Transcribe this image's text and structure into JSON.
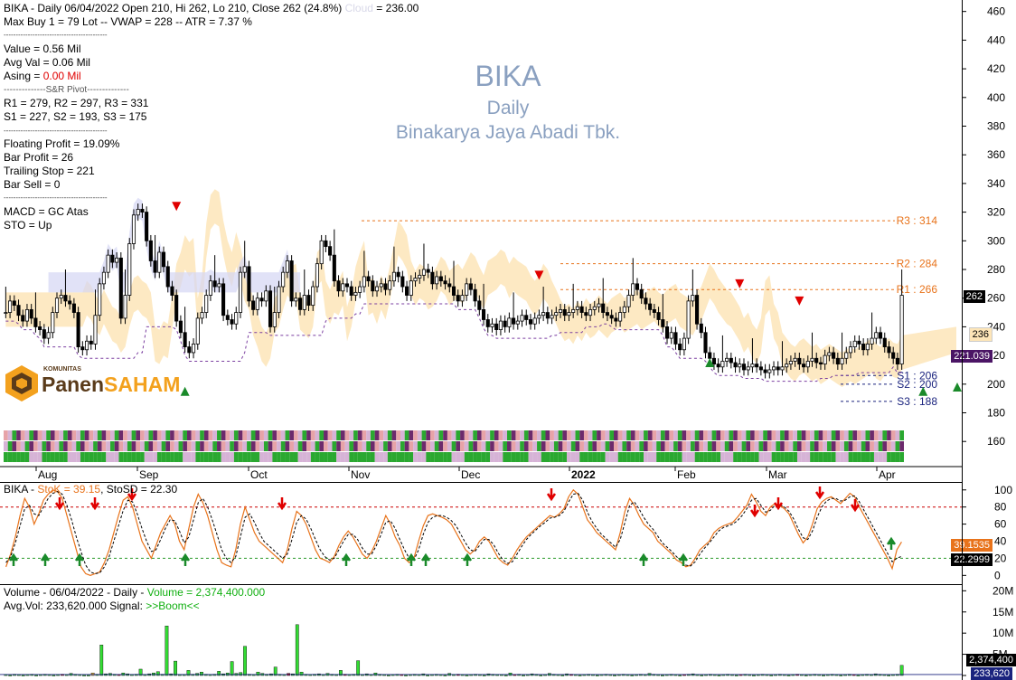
{
  "header": {
    "line1_prefix": "BIKA - Daily 06/04/2022 Open 210, Hi 262, Lo 210, Close 262 (24.8%)",
    "cloud_label": "Cloud",
    "cloud_value": "= 236.00",
    "line2": "Max Buy 1 = 79 Lot  --  VWAP = 228  --  ATR = 7.37 %",
    "divider": "-------------------------------------------",
    "value": "Value = 0.56 Mil",
    "avg_val": "Avg Val = 0.06 Mil",
    "asing_label": "Asing = ",
    "asing_value": "0.00 Mil",
    "pivot_title": "--------------S&R Pivot--------------",
    "r_line": "R1 = 279, R2 = 297, R3 = 331",
    "s_line": "S1 = 227, S2 = 193, S3 = 175",
    "floating": "Floating Profit = 19.09%",
    "bar_profit": "Bar Profit = 26",
    "trailing": "Trailing Stop = 221",
    "bar_sell": "Bar Sell = 0",
    "macd": "MACD =  GC Atas",
    "sto": "STO  =  Up"
  },
  "watermark": {
    "ticker": "BIKA",
    "period": "Daily",
    "company": "Binakarya Jaya Abadi Tbk."
  },
  "logo": {
    "small": "KOMUNITAS",
    "part1": "Panen",
    "part2": "SAHAM"
  },
  "levels": [
    {
      "label": "R3 : 314",
      "value": 314,
      "color": "#e8731b"
    },
    {
      "label": "R2 : 284",
      "value": 284,
      "color": "#e8731b"
    },
    {
      "label": "R1 : 266",
      "value": 266,
      "color": "#e8731b"
    },
    {
      "label": "S1 : 206",
      "value": 206,
      "color": "#1a237e"
    },
    {
      "label": "S2 : 200",
      "value": 200,
      "color": "#1a237e"
    },
    {
      "label": "S3 : 188",
      "value": 188,
      "color": "#1a237e"
    }
  ],
  "price_tags": {
    "last": "262",
    "cloud": "236",
    "trail": "221.039"
  },
  "sto_header": {
    "prefix": "BIKA - ",
    "stok": "StoK = 39.15",
    "stosd": ", StoSD = 22.30"
  },
  "sto_tags": {
    "k": "39.1535",
    "d": "22.2999"
  },
  "vol_header": {
    "prefix": "Volume - 06/04/2022 - Daily - ",
    "vol": "Volume = 2,374,400.000",
    "avg_prefix": "Avg.Vol: 233,620.000   Signal: ",
    "signal": ">>Boom<<"
  },
  "vol_tags": {
    "vol": "2,374,400",
    "avg": "233,620"
  },
  "colors": {
    "bull": "#000000",
    "bear": "#000000",
    "cloud": "#fde5b8",
    "cloud_blue": "#d4d6f4",
    "buy_arrow": "#1a8a2a",
    "sell_arrow": "#e00000",
    "stok": "#e8731b",
    "stosd": "#000000",
    "vol_green": "#33dd33",
    "vol_red": "#cc1111",
    "vol_orange": "#f0c040"
  },
  "chart_data": [
    {
      "type": "candlestick",
      "title": "BIKA",
      "y_ticks": [
        160,
        180,
        200,
        220,
        240,
        260,
        280,
        300,
        320,
        340,
        360,
        380,
        400,
        420,
        440,
        460
      ],
      "ylim": [
        145,
        468
      ],
      "x_ticks": [
        "Aug",
        "Sep",
        "Oct",
        "Nov",
        "Dec",
        "2022",
        "Feb",
        "Mar",
        "Apr"
      ],
      "close": [
        250,
        258,
        255,
        248,
        244,
        252,
        246,
        240,
        238,
        232,
        236,
        250,
        260,
        262,
        258,
        256,
        250,
        226,
        224,
        230,
        228,
        248,
        270,
        278,
        290,
        285,
        288,
        246,
        262,
        298,
        318,
        322,
        320,
        300,
        286,
        278,
        292,
        282,
        268,
        262,
        244,
        236,
        226,
        222,
        228,
        246,
        250,
        262,
        272,
        268,
        270,
        248,
        245,
        242,
        250,
        278,
        282,
        258,
        252,
        260,
        258,
        265,
        240,
        250,
        268,
        278,
        286,
        258,
        260,
        252,
        262,
        255,
        268,
        284,
        300,
        296,
        290,
        272,
        265,
        270,
        268,
        262,
        264,
        268,
        275,
        272,
        265,
        268,
        270,
        266,
        272,
        278,
        275,
        268,
        262,
        272,
        274,
        276,
        280,
        278,
        270,
        275,
        272,
        270,
        268,
        262,
        258,
        262,
        270,
        266,
        258,
        252,
        245,
        240,
        242,
        238,
        244,
        240,
        246,
        242,
        244,
        248,
        245,
        242,
        246,
        248,
        250,
        246,
        248,
        250,
        252,
        248,
        250,
        252,
        254,
        250,
        248,
        252,
        254,
        256,
        250,
        248,
        246,
        244,
        250,
        254,
        262,
        270,
        266,
        260,
        256,
        252,
        250,
        245,
        240,
        232,
        236,
        228,
        224,
        232,
        258,
        262,
        242,
        236,
        222,
        218,
        214,
        212,
        216,
        218,
        215,
        212,
        214,
        210,
        212,
        214,
        212,
        210,
        208,
        210,
        212,
        210,
        212,
        214,
        216,
        218,
        214,
        212,
        216,
        218,
        215,
        214,
        220,
        222,
        218,
        214,
        218,
        222,
        226,
        230,
        228,
        224,
        228,
        232,
        236,
        232,
        226,
        222,
        218,
        214,
        262
      ],
      "open_note": "approx"
    },
    {
      "type": "line",
      "title": "StoK / StoSD",
      "y_ticks": [
        0,
        20,
        40,
        60,
        80,
        100
      ],
      "ylim": [
        -6,
        104
      ],
      "series": [
        {
          "name": "StoK",
          "values": [
            10,
            25,
            45,
            70,
            90,
            80,
            60,
            72,
            88,
            95,
            100,
            98,
            90,
            70,
            50,
            30,
            10,
            2,
            0,
            2,
            4,
            15,
            30,
            50,
            70,
            88,
            92,
            80,
            60,
            40,
            30,
            20,
            35,
            50,
            60,
            70,
            60,
            40,
            30,
            55,
            80,
            95,
            85,
            70,
            50,
            30,
            15,
            12,
            10,
            30,
            60,
            80,
            65,
            50,
            40,
            35,
            30,
            25,
            20,
            15,
            30,
            55,
            75,
            70,
            60,
            45,
            30,
            20,
            18,
            15,
            22,
            35,
            45,
            52,
            45,
            35,
            25,
            20,
            28,
            40,
            55,
            70,
            60,
            45,
            35,
            20,
            15,
            20,
            40,
            58,
            70,
            72,
            70,
            68,
            65,
            60,
            50,
            40,
            30,
            25,
            30,
            40,
            45,
            40,
            30,
            20,
            15,
            12,
            20,
            30,
            38,
            45,
            50,
            55,
            60,
            65,
            70,
            68,
            72,
            78,
            92,
            100,
            95,
            80,
            65,
            58,
            50,
            45,
            40,
            35,
            30,
            50,
            75,
            90,
            82,
            70,
            60,
            55,
            50,
            40,
            35,
            30,
            25,
            18,
            15,
            10,
            12,
            20,
            30,
            35,
            40,
            50,
            55,
            58,
            60,
            62,
            68,
            75,
            82,
            95,
            86,
            75,
            70,
            80,
            84,
            82,
            78,
            72,
            60,
            48,
            38,
            45,
            60,
            78,
            86,
            90,
            92,
            88,
            84,
            90,
            96,
            92,
            80,
            70,
            60,
            50,
            40,
            30,
            20,
            8,
            30,
            39.15
          ]
        },
        {
          "name": "StoSD",
          "values": [
            15,
            22,
            38,
            58,
            78,
            82,
            72,
            70,
            80,
            90,
            96,
            98,
            95,
            82,
            65,
            45,
            28,
            12,
            4,
            2,
            3,
            10,
            22,
            40,
            58,
            76,
            88,
            86,
            72,
            55,
            40,
            28,
            30,
            42,
            55,
            65,
            64,
            52,
            38,
            45,
            65,
            85,
            90,
            80,
            65,
            48,
            30,
            20,
            15,
            22,
            45,
            68,
            72,
            62,
            50,
            40,
            35,
            30,
            25,
            20,
            25,
            42,
            62,
            70,
            66,
            55,
            42,
            30,
            22,
            18,
            20,
            30,
            40,
            48,
            48,
            42,
            32,
            25,
            25,
            35,
            48,
            62,
            64,
            55,
            42,
            30,
            20,
            18,
            30,
            48,
            62,
            68,
            70,
            70,
            68,
            64,
            58,
            48,
            38,
            30,
            28,
            35,
            42,
            42,
            36,
            26,
            18,
            14,
            16,
            25,
            34,
            42,
            48,
            53,
            58,
            62,
            67,
            68,
            70,
            75,
            86,
            95,
            96,
            88,
            74,
            63,
            55,
            48,
            43,
            38,
            33,
            42,
            62,
            82,
            86,
            78,
            68,
            60,
            54,
            46,
            38,
            33,
            28,
            22,
            17,
            12,
            11,
            16,
            25,
            32,
            38,
            45,
            52,
            56,
            58,
            60,
            64,
            70,
            78,
            88,
            90,
            82,
            74,
            76,
            82,
            83,
            80,
            75,
            66,
            54,
            44,
            42,
            52,
            68,
            80,
            87,
            90,
            90,
            87,
            88,
            92,
            93,
            86,
            76,
            66,
            56,
            46,
            36,
            26,
            16,
            20,
            22.3
          ]
        }
      ],
      "ref_lines": [
        80,
        20
      ]
    },
    {
      "type": "bar",
      "title": "Volume",
      "y_ticks": [
        "0",
        "5M",
        "10M",
        "15M",
        "20M"
      ],
      "ylim": [
        0,
        20500000
      ],
      "values_in_millions": [
        0.2,
        0.1,
        0.3,
        0.2,
        0.1,
        0.2,
        0.3,
        0.1,
        0.2,
        0.3,
        0.2,
        0.1,
        0.2,
        0.3,
        0.2,
        0.5,
        0.3,
        0.2,
        0.1,
        0.1,
        0.6,
        0.3,
        7.2,
        0.4,
        0.5,
        0.3,
        0.2,
        0.6,
        0.4,
        0.2,
        0.3,
        1.5,
        0.2,
        0.4,
        0.6,
        0.9,
        0.3,
        11.7,
        0.4,
        3.4,
        0.2,
        0.2,
        1.2,
        0.3,
        0.5,
        0.8,
        0.3,
        0.2,
        0.3,
        1.0,
        0.4,
        0.6,
        3.3,
        0.5,
        0.7,
        6.9,
        0.3,
        0.2,
        0.8,
        0.5,
        0.3,
        0.4,
        2.0,
        0.3,
        0.2,
        0.5,
        0.4,
        12.0,
        0.8,
        0.3,
        0.2,
        0.3,
        0.4,
        0.2,
        0.5,
        0.3,
        0.2,
        1.2,
        0.3,
        0.2,
        0.3,
        3.5,
        0.2,
        0.4,
        0.2,
        0.6,
        0.3,
        0.2,
        0.1,
        0.2,
        0.3,
        0.2,
        0.1,
        0.2,
        0.3,
        0.2,
        0.4,
        0.1,
        0.2,
        0.3,
        0.2,
        0.1,
        0.5,
        0.2,
        0.3,
        0.2,
        0.1,
        0.2,
        0.3,
        0.2,
        0.1,
        0.4,
        0.3,
        0.2,
        0.2,
        0.1,
        0.6,
        0.2,
        0.3,
        0.1,
        0.2,
        0.4,
        0.3,
        0.1,
        0.2,
        0.5,
        0.3,
        0.2,
        0.1,
        0.4,
        0.3,
        0.2,
        0.1,
        0.2,
        0.3,
        0.2,
        0.1,
        0.2,
        0.3,
        0.2,
        0.1,
        0.2,
        0.3,
        0.2,
        0.1,
        0.2,
        0.3,
        0.2,
        0.5,
        0.3,
        0.2,
        0.1,
        0.2,
        0.3,
        0.2,
        0.1,
        0.2,
        0.3,
        0.4,
        0.2,
        0.1,
        0.2,
        0.3,
        0.2,
        0.1,
        0.2,
        0.3,
        0.2,
        0.1,
        0.2,
        0.3,
        0.2,
        0.1,
        0.2,
        0.3,
        0.2,
        0.1,
        0.2,
        0.3,
        0.2,
        0.1,
        0.2,
        0.3,
        0.2,
        0.1,
        0.2,
        0.3,
        0.2,
        0.1,
        0.2,
        0.3,
        0.2,
        0.1,
        0.2,
        0.3,
        0.2,
        0.1,
        0.2,
        0.3,
        0.2,
        0.4,
        0.3,
        0.2,
        0.1,
        0.2,
        0.3,
        2.4
      ],
      "avg_volume_millions": 0.23
    }
  ]
}
